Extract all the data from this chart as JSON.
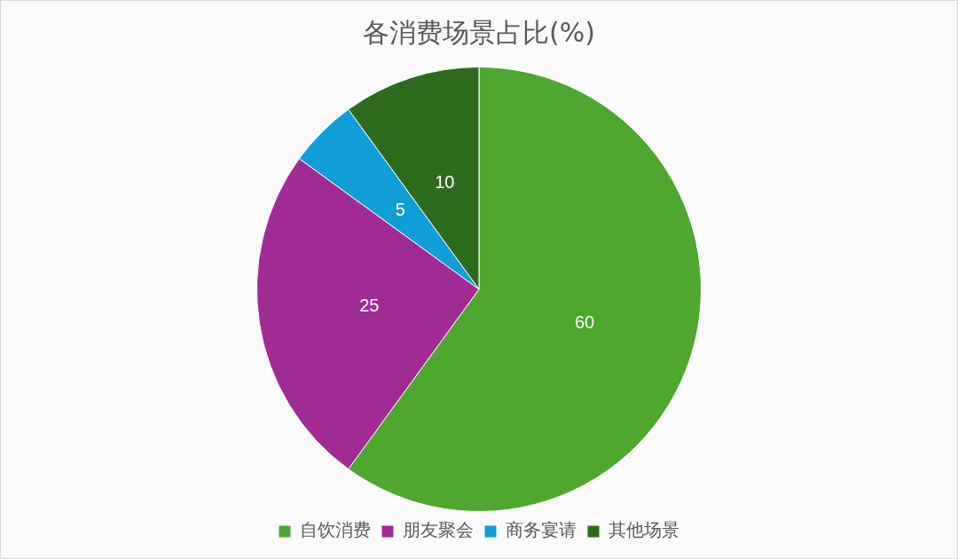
{
  "chart_data": {
    "type": "pie",
    "title": "各消费场景占比(%)",
    "categories": [
      "自饮消费",
      "朋友聚会",
      "商务宴请",
      "其他场景"
    ],
    "values": [
      60,
      25,
      5,
      10
    ],
    "colors": [
      "#4ea72e",
      "#a02b93",
      "#0f9ed5",
      "#2f6b1e"
    ],
    "data_labels": true,
    "legend": "bottom"
  }
}
